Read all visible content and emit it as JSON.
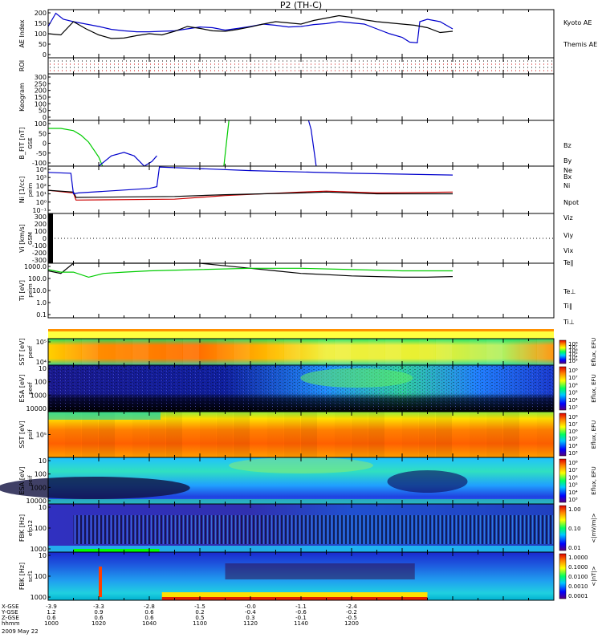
{
  "title": "P2 (TH-C)",
  "chart_data": [
    {
      "type": "line",
      "ylabel": "AE Index",
      "ylim": [
        0,
        200
      ],
      "yticks": [
        "0",
        "50",
        "100",
        "150",
        "200"
      ],
      "series": [
        {
          "name": "Kyoto AE",
          "color": "#0000cc",
          "x": [
            1000,
            1003,
            1006,
            1010,
            1015,
            1020,
            1025,
            1030,
            1035,
            1040,
            1045,
            1050,
            1055,
            1060,
            1065,
            1070,
            1075,
            1080,
            1085,
            1090,
            1095,
            1100,
            1105,
            1110,
            1115,
            1120,
            1125,
            1130,
            1135,
            1140,
            1143,
            1146,
            1147,
            1150,
            1155,
            1160
          ],
          "y": [
            130,
            185,
            160,
            150,
            140,
            130,
            118,
            112,
            108,
            108,
            110,
            112,
            120,
            128,
            125,
            115,
            122,
            130,
            140,
            135,
            128,
            130,
            138,
            142,
            150,
            145,
            140,
            120,
            100,
            85,
            65,
            62,
            150,
            160,
            150,
            120
          ]
        },
        {
          "name": "Themis AE",
          "color": "#000000",
          "x": [
            1000,
            1005,
            1010,
            1015,
            1020,
            1025,
            1030,
            1035,
            1040,
            1045,
            1050,
            1055,
            1060,
            1065,
            1070,
            1075,
            1080,
            1085,
            1090,
            1095,
            1100,
            1105,
            1110,
            1115,
            1120,
            1125,
            1130,
            1135,
            1140,
            1145,
            1150,
            1155,
            1160
          ],
          "y": [
            100,
            95,
            150,
            120,
            95,
            80,
            82,
            92,
            100,
            95,
            110,
            130,
            122,
            112,
            110,
            118,
            128,
            140,
            150,
            145,
            140,
            155,
            165,
            175,
            168,
            158,
            150,
            145,
            140,
            135,
            125,
            105,
            110
          ]
        }
      ]
    },
    {
      "type": "heatmap",
      "ylabel": "ROI"
    },
    {
      "type": "line",
      "ylabel": "Keogram",
      "ylim": [
        0,
        300
      ],
      "yticks": [
        "0",
        "50",
        "100",
        "150",
        "200",
        "250",
        "300"
      ]
    },
    {
      "type": "line",
      "ylabel": "B_FIT [nT]",
      "axis_extra": "GSE",
      "ylim": [
        -100,
        100
      ],
      "yticks": [
        "-100",
        "-50",
        "0",
        "50",
        "100"
      ],
      "series": [
        {
          "name": "Bz",
          "color": "#cc0000",
          "x": [],
          "y": []
        },
        {
          "name": "By",
          "color": "#00cc00",
          "x": [
            1000,
            1005,
            1010,
            1013,
            1016,
            1020,
            1021.5
          ],
          "y": [
            65,
            65,
            55,
            35,
            5,
            -60,
            -100
          ]
        },
        {
          "name": "Bx",
          "color": "#0000cc",
          "x": [
            1020,
            1025,
            1030,
            1034,
            1038,
            1041,
            1043
          ],
          "y": [
            -100,
            -55,
            -40,
            -55,
            -100,
            -80,
            -55
          ]
        }
      ],
      "extra_lines": [
        {
          "color": "#00cc00",
          "x": [
            1069.5,
            1071.5
          ],
          "y": [
            -100,
            100
          ]
        },
        {
          "color": "#0000cc",
          "x": [
            1103,
            1104,
            1106
          ],
          "y": [
            100,
            60,
            -100
          ]
        }
      ]
    },
    {
      "type": "line",
      "ylabel": "Ni [1/cc]",
      "axis_extra": "peim",
      "log": true,
      "ylim": [
        -1,
        4.3
      ],
      "yticks": [
        "10⁻¹",
        "10⁰",
        "10¹",
        "10²",
        "10³",
        "10⁴"
      ],
      "series": [
        {
          "name": "Ne",
          "color": "#cc0000",
          "x": [
            1000,
            1010,
            1011,
            1050,
            1070,
            1100,
            1110,
            1130,
            1160
          ],
          "y": [
            1.6,
            1.3,
            0.5,
            0.6,
            1.0,
            1.4,
            1.5,
            1.3,
            1.4
          ]
        },
        {
          "name": "Ni",
          "color": "#000000",
          "x": [
            1000,
            1010,
            1011,
            1050,
            1070,
            1100,
            1110,
            1130,
            1160
          ],
          "y": [
            1.6,
            1.4,
            0.8,
            0.9,
            1.1,
            1.3,
            1.4,
            1.2,
            1.2
          ]
        },
        {
          "name": "Npot",
          "color": "#0000cc",
          "x": [
            1000,
            1009,
            1010,
            1012,
            1040,
            1043,
            1044,
            1080,
            1120,
            1160
          ],
          "y": [
            3.6,
            3.5,
            1.2,
            1.3,
            1.8,
            2.0,
            4.2,
            3.8,
            3.5,
            3.3
          ]
        }
      ]
    },
    {
      "type": "line",
      "ylabel": "Vi [km/s]",
      "axis_extra": "GSM",
      "ylim": [
        -300,
        300
      ],
      "yticks": [
        "-300",
        "-200",
        "-100",
        "0",
        "100",
        "200",
        "300"
      ],
      "series": [
        {
          "name": "Viz",
          "color": "#cc0000",
          "x": [],
          "y": []
        },
        {
          "name": "Viy",
          "color": "#00cc00",
          "x": [],
          "y": []
        },
        {
          "name": "Vix",
          "color": "#0000cc",
          "x": [],
          "y": []
        }
      ]
    },
    {
      "type": "line",
      "ylabel": "Ti [eV]",
      "axis_extra": "peim",
      "log": true,
      "ylim": [
        -1,
        3.3
      ],
      "yticks": [
        "0.1",
        "1.0",
        "10.0",
        "100.0",
        "1000.0"
      ],
      "series": [
        {
          "name": "Te∥",
          "color": "#000000",
          "x": [
            1000,
            1005,
            1010,
            1020,
            1030,
            1040,
            1050,
            1060,
            1070,
            1080,
            1090,
            1100,
            1110,
            1120,
            1130,
            1140,
            1150,
            1160
          ],
          "y": [
            2.7,
            2.5,
            3.5,
            3.6,
            3.65,
            3.6,
            3.5,
            3.3,
            3.1,
            2.9,
            2.7,
            2.5,
            2.4,
            2.3,
            2.25,
            2.2,
            2.2,
            2.25
          ]
        },
        {
          "name": "Te⊥",
          "color": "#cc0000",
          "x": [],
          "y": []
        },
        {
          "name": "Ti∥",
          "color": "#00cc00",
          "x": [
            1000,
            1005,
            1010,
            1016,
            1022,
            1030,
            1040,
            1060,
            1080,
            1100,
            1120,
            1140,
            1160
          ],
          "y": [
            2.8,
            2.6,
            2.6,
            2.2,
            2.5,
            2.6,
            2.7,
            2.8,
            2.9,
            2.9,
            2.8,
            2.7,
            2.7
          ]
        },
        {
          "name": "Ti⊥",
          "color": "#0000cc",
          "x": [],
          "y": []
        }
      ]
    },
    {
      "type": "heatmap",
      "ylabel": "SST [eV]",
      "axis_extra": "peef",
      "yticks": [
        "10⁴",
        "10⁵"
      ],
      "cbar_label": "Eflux, EFU",
      "cbar_ticks": [
        "10⁸",
        "10⁷",
        "10⁶",
        "10⁵",
        "10⁴",
        "10³"
      ]
    },
    {
      "type": "heatmap",
      "ylabel": "ESA [eV]",
      "axis_extra": "peef",
      "yticks": [
        "10000",
        "1000",
        "100",
        "10"
      ],
      "cbar_label": "Eflux, EFU",
      "cbar_ticks": [
        "10⁸",
        "10⁷",
        "10⁶",
        "10⁵",
        "10⁴",
        "10³"
      ]
    },
    {
      "type": "heatmap",
      "ylabel": "SST [eV]",
      "axis_extra": "psif",
      "yticks": [
        "10⁵"
      ],
      "cbar_label": "Eflux, EFU",
      "cbar_ticks": [
        "10⁸",
        "10⁷",
        "10⁶",
        "10⁵",
        "10⁴",
        "10³"
      ]
    },
    {
      "type": "heatmap",
      "ylabel": "ESA [eV]",
      "axis_extra": "peif",
      "yticks": [
        "10000",
        "1000",
        "100",
        "10"
      ],
      "cbar_label": "Eflux, EFU",
      "cbar_ticks": [
        "10⁸",
        "10⁷",
        "10⁶",
        "10⁵",
        "10⁴",
        "10³"
      ]
    },
    {
      "type": "heatmap",
      "ylabel": "FBK [Hz]",
      "axis_extra": "efp12",
      "yticks": [
        "1000",
        "100",
        "10"
      ],
      "cbar_label": "<|mV/m|>",
      "cbar_ticks": [
        "1.00",
        "0.10",
        "0.01"
      ]
    },
    {
      "type": "heatmap",
      "ylabel": "FBK [Hz]",
      "axis_extra": "scf1",
      "yticks": [
        "1000",
        "100",
        "10"
      ],
      "cbar_label": "<|nT|>",
      "cbar_ticks": [
        "1.0000",
        "0.1000",
        "0.0100",
        "0.0010",
        "0.0001"
      ]
    }
  ],
  "legends": {
    "ae": [
      "Kyoto AE",
      "Themis AE"
    ],
    "b": [
      "Bz",
      "By",
      "Bx"
    ],
    "n": [
      "Ne",
      "Ni",
      "Npot"
    ],
    "v": [
      "Viz",
      "Viy",
      "Vix"
    ],
    "t": [
      "Te∥",
      "Te⊥",
      "Ti∥",
      "Ti⊥"
    ]
  },
  "xaxis": {
    "row_labels": [
      "X-GSE",
      "Y-GSE",
      "Z-GSE",
      "hhmm",
      "2009 May 22"
    ],
    "columns": [
      [
        "-3.9",
        "1.2",
        "0.6",
        "1000"
      ],
      [
        "-3.3",
        "0.9",
        "0.6",
        "1020"
      ],
      [
        "-2.8",
        "0.6",
        "0.6",
        "1040"
      ],
      [
        "-1.5",
        "0.2",
        "0.5",
        "1100"
      ],
      [
        "-0.0",
        "-0.4",
        "0.3",
        "1120"
      ],
      [
        "-1.1",
        "-0.6",
        "-0.1",
        "1140"
      ],
      [
        "-2.4",
        "-0.2",
        "-0.5",
        "1200"
      ]
    ]
  }
}
